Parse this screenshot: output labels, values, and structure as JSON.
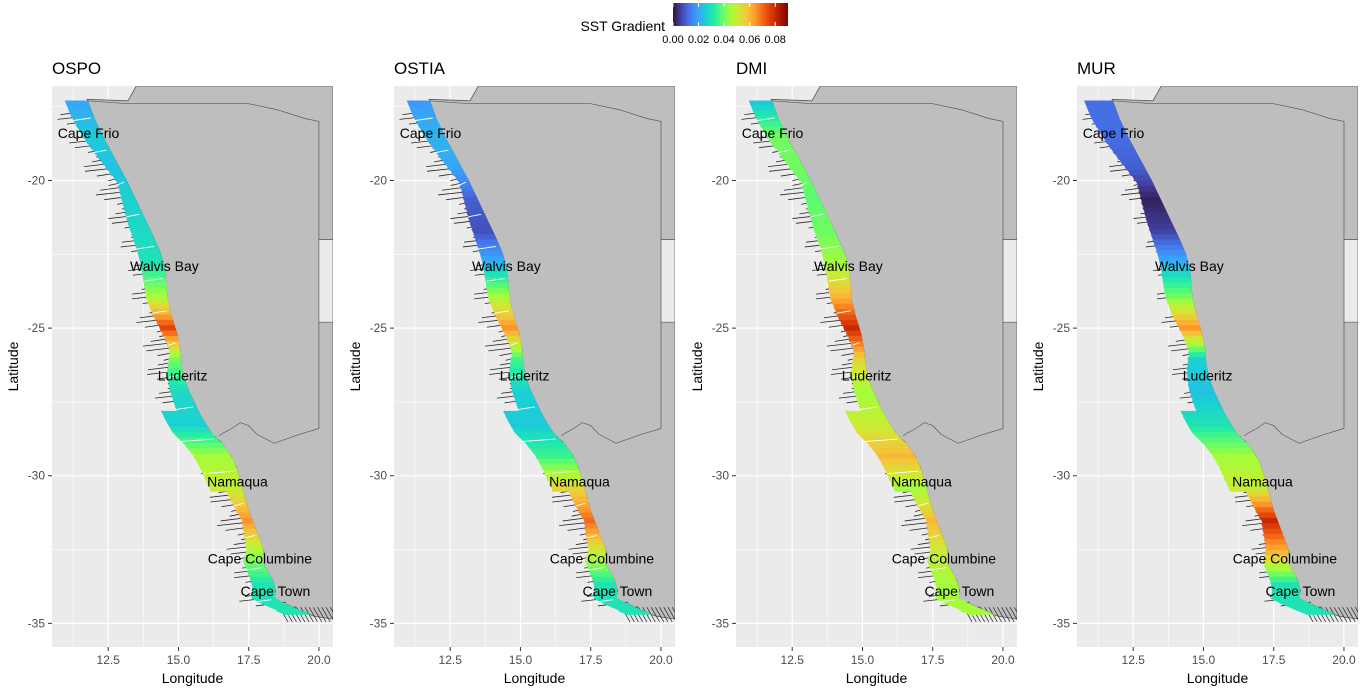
{
  "legend": {
    "title": "SST Gradient",
    "ticks": [
      "0.00",
      "0.02",
      "0.04",
      "0.06",
      "0.08"
    ],
    "range": [
      0,
      0.09
    ],
    "colormap": [
      "#30123b",
      "#4145ab",
      "#4675ed",
      "#39a2fc",
      "#1bcfd4",
      "#24eca6",
      "#61fc6c",
      "#a4fc3b",
      "#d1e834",
      "#f3c63a",
      "#fe9b2d",
      "#f36315",
      "#d93806",
      "#b11901",
      "#7a0403"
    ]
  },
  "axes": {
    "xlabel": "Longitude",
    "ylabel": "Latitude",
    "x_ticks": [
      "12.5",
      "15.0",
      "17.5",
      "20.0"
    ],
    "y_ticks": [
      "-20",
      "-25",
      "-30",
      "-35"
    ],
    "xlim": [
      10.5,
      20.5
    ],
    "ylim": [
      -35.8,
      -16.8
    ]
  },
  "colors": {
    "panel_background": "#ebebeb",
    "grid": "#ffffff",
    "land": "#bebebe",
    "land_border": "#595959",
    "tracks": "#262626"
  },
  "places": [
    {
      "name": "Cape Frio",
      "lon": 11.8,
      "lat": -18.4
    },
    {
      "name": "Walvis Bay",
      "lon": 14.5,
      "lat": -22.9
    },
    {
      "name": "Luderitz",
      "lon": 15.15,
      "lat": -26.6
    },
    {
      "name": "Namaqua",
      "lon": 17.1,
      "lat": -30.2
    },
    {
      "name": "Cape Columbine",
      "lon": 17.9,
      "lat": -32.8
    },
    {
      "name": "Cape Town",
      "lon": 18.45,
      "lat": -33.9
    }
  ],
  "panels": [
    {
      "title": "OSPO",
      "gradient": [
        0.02,
        0.025,
        0.024,
        0.026,
        0.028,
        0.03,
        0.045,
        0.075,
        0.04,
        0.028,
        0.026,
        0.045,
        0.05,
        0.065,
        0.045,
        0.03
      ]
    },
    {
      "title": "OSTIA",
      "gradient": [
        0.018,
        0.022,
        0.02,
        0.01,
        0.008,
        0.022,
        0.045,
        0.065,
        0.035,
        0.026,
        0.025,
        0.035,
        0.055,
        0.07,
        0.05,
        0.03
      ]
    },
    {
      "title": "DMI",
      "gradient": [
        0.025,
        0.04,
        0.04,
        0.038,
        0.04,
        0.045,
        0.06,
        0.08,
        0.055,
        0.045,
        0.05,
        0.06,
        0.045,
        0.06,
        0.05,
        0.045
      ]
    },
    {
      "title": "MUR",
      "gradient": [
        0.012,
        0.012,
        0.01,
        0.002,
        0.006,
        0.022,
        0.04,
        0.065,
        0.026,
        0.024,
        0.03,
        0.045,
        0.05,
        0.08,
        0.06,
        0.03
      ]
    }
  ]
}
